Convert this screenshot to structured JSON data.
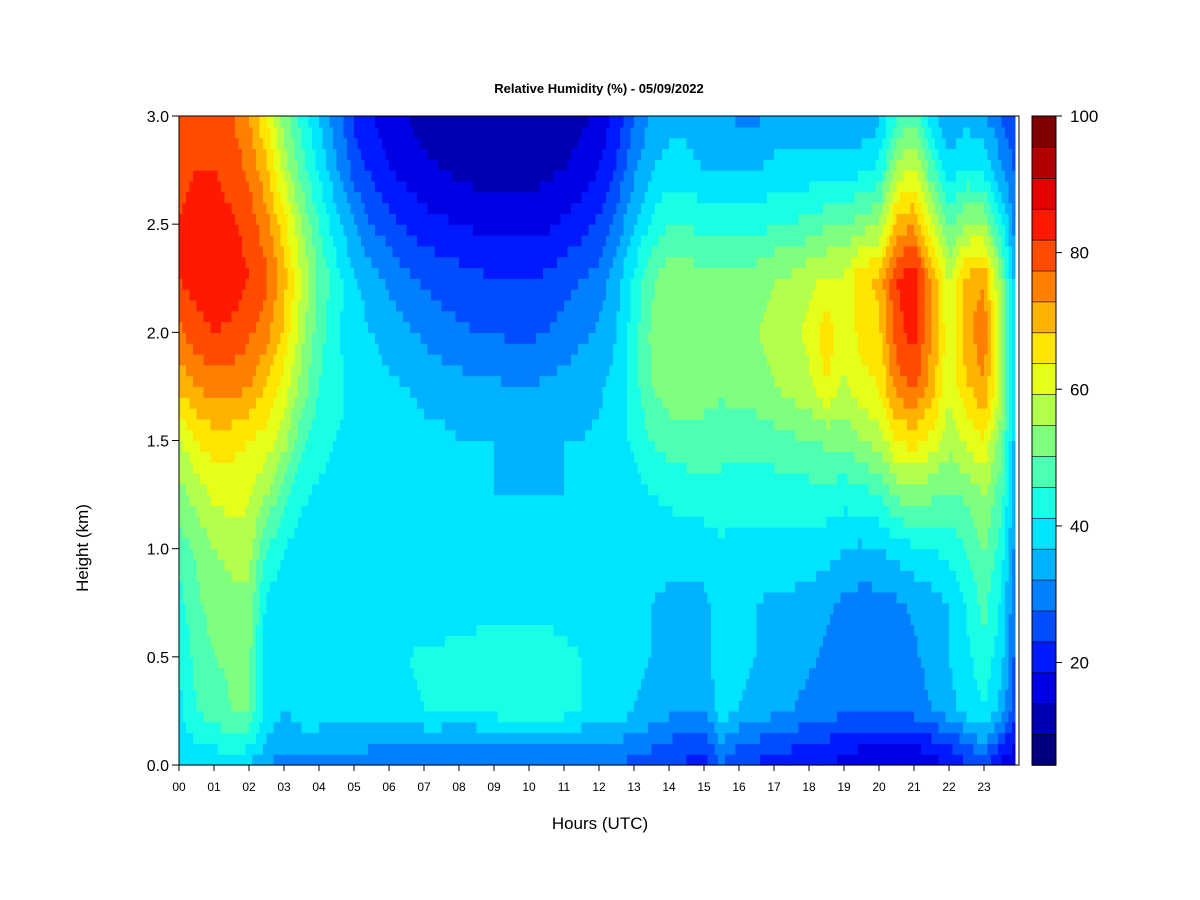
{
  "chart_data": {
    "type": "heatmap",
    "title": "Relative Humidity (%) - 05/09/2022",
    "xlabel": "Hours (UTC)",
    "ylabel": "Height (km)",
    "xlim": [
      0,
      24
    ],
    "ylim": [
      0.0,
      3.0
    ],
    "x_tick_labels": [
      "00",
      "01",
      "02",
      "03",
      "04",
      "05",
      "06",
      "07",
      "08",
      "09",
      "10",
      "11",
      "12",
      "13",
      "14",
      "15",
      "16",
      "17",
      "18",
      "19",
      "20",
      "21",
      "22",
      "23"
    ],
    "y_tick_labels": [
      "0.0",
      "0.5",
      "1.0",
      "1.5",
      "2.0",
      "2.5",
      "3.0"
    ],
    "y_ticks": [
      0.0,
      0.5,
      1.0,
      1.5,
      2.0,
      2.5,
      3.0
    ],
    "colorbar": {
      "min": 5,
      "max": 100,
      "step": 5,
      "tick_labels": [
        "20",
        "40",
        "60",
        "80",
        "100"
      ],
      "ticks": [
        20,
        40,
        60,
        80,
        100
      ],
      "colors": [
        "#00007f",
        "#0000b2",
        "#0000e5",
        "#0019ff",
        "#004cff",
        "#007fff",
        "#00b2ff",
        "#00e5ff",
        "#19ffe5",
        "#4cffb2",
        "#7fff7f",
        "#b2ff4c",
        "#e5ff19",
        "#ffe500",
        "#ffb200",
        "#ff7f00",
        "#ff4c00",
        "#ff1900",
        "#e50000",
        "#b20000",
        "#7f0000"
      ]
    },
    "heights_km": [
      0.0,
      0.1,
      0.25,
      0.5,
      0.75,
      1.0,
      1.25,
      1.5,
      1.75,
      2.0,
      2.25,
      2.5,
      2.75,
      3.0
    ],
    "hours": [
      0,
      0.5,
      1,
      1.5,
      2,
      2.5,
      3,
      3.5,
      4,
      4.5,
      5,
      5.5,
      6,
      6.5,
      7,
      7.5,
      8,
      8.5,
      9,
      9.5,
      10,
      10.5,
      11,
      11.5,
      12,
      12.5,
      13,
      13.5,
      14,
      14.5,
      15,
      15.5,
      16,
      16.5,
      17,
      17.5,
      18,
      18.5,
      19,
      19.5,
      20,
      20.5,
      21,
      21.5,
      22,
      22.5,
      23,
      23.5,
      23.85
    ],
    "rh_percent": [
      [
        40,
        42,
        42,
        44,
        40,
        35,
        32,
        33,
        33,
        32,
        32,
        31,
        31,
        30,
        30,
        30,
        30,
        30,
        30,
        30,
        30,
        30,
        30,
        30,
        30,
        30,
        28,
        27,
        25,
        24,
        22,
        30,
        26,
        24,
        22,
        22,
        20,
        20,
        18,
        16,
        16,
        14,
        15,
        18,
        20,
        24,
        25,
        18,
        15
      ],
      [
        42,
        45,
        45,
        48,
        46,
        40,
        36,
        38,
        38,
        37,
        37,
        36,
        36,
        35,
        35,
        35,
        34,
        34,
        34,
        34,
        34,
        35,
        35,
        35,
        34,
        34,
        33,
        31,
        29,
        28,
        26,
        35,
        30,
        29,
        27,
        26,
        25,
        24,
        22,
        21,
        20,
        20,
        20,
        23,
        25,
        30,
        35,
        25,
        20
      ],
      [
        44,
        50,
        52,
        55,
        55,
        42,
        40,
        42,
        42,
        42,
        43,
        43,
        44,
        44,
        45,
        45,
        45,
        46,
        47,
        48,
        49,
        49,
        47,
        45,
        44,
        43,
        40,
        38,
        36,
        36,
        35,
        42,
        40,
        38,
        36,
        35,
        33,
        32,
        31,
        30,
        30,
        30,
        32,
        35,
        38,
        42,
        45,
        38,
        28
      ],
      [
        45,
        52,
        55,
        56,
        56,
        42,
        42,
        44,
        44,
        44,
        44,
        44,
        44,
        45,
        46,
        46,
        47,
        48,
        49,
        50,
        50,
        49,
        47,
        45,
        43,
        42,
        41,
        40,
        39,
        38,
        38,
        44,
        41,
        40,
        39,
        38,
        36,
        34,
        33,
        32,
        31,
        32,
        34,
        37,
        40,
        44,
        48,
        42,
        30
      ],
      [
        48,
        54,
        57,
        58,
        58,
        44,
        42,
        42,
        42,
        42,
        42,
        42,
        42,
        42,
        42,
        42,
        42,
        42,
        42,
        42,
        42,
        42,
        41,
        40,
        40,
        40,
        40,
        40,
        39,
        39,
        39,
        42,
        40,
        40,
        39,
        39,
        38,
        36,
        34,
        33,
        33,
        34,
        36,
        38,
        40,
        45,
        52,
        44,
        32
      ],
      [
        52,
        56,
        60,
        62,
        62,
        50,
        45,
        43,
        42,
        42,
        42,
        41,
        41,
        41,
        40,
        40,
        40,
        40,
        40,
        40,
        40,
        40,
        40,
        40,
        40,
        40,
        41,
        42,
        42,
        42,
        42,
        44,
        43,
        43,
        43,
        43,
        43,
        42,
        40,
        39,
        40,
        42,
        44,
        45,
        47,
        50,
        56,
        48,
        35
      ],
      [
        58,
        62,
        66,
        67,
        66,
        60,
        52,
        46,
        44,
        43,
        42,
        42,
        41,
        41,
        40,
        40,
        40,
        40,
        40,
        40,
        40,
        40,
        40,
        40,
        40,
        41,
        43,
        45,
        46,
        47,
        48,
        48,
        47,
        47,
        47,
        47,
        48,
        48,
        47,
        48,
        50,
        56,
        58,
        56,
        54,
        56,
        60,
        52,
        38
      ],
      [
        64,
        70,
        73,
        72,
        70,
        68,
        62,
        52,
        47,
        45,
        44,
        43,
        42,
        42,
        41,
        41,
        40,
        40,
        40,
        39,
        39,
        39,
        40,
        40,
        41,
        43,
        46,
        50,
        52,
        53,
        53,
        52,
        52,
        52,
        53,
        54,
        55,
        56,
        56,
        60,
        62,
        70,
        72,
        68,
        62,
        66,
        70,
        56,
        40
      ],
      [
        76,
        80,
        82,
        82,
        80,
        75,
        68,
        58,
        50,
        46,
        44,
        42,
        41,
        40,
        39,
        38,
        37,
        36,
        36,
        35,
        35,
        36,
        37,
        38,
        39,
        42,
        48,
        55,
        58,
        58,
        57,
        56,
        57,
        58,
        60,
        62,
        64,
        70,
        64,
        68,
        70,
        82,
        86,
        78,
        66,
        74,
        80,
        62,
        44
      ],
      [
        84,
        88,
        90,
        89,
        86,
        82,
        74,
        62,
        52,
        46,
        42,
        40,
        38,
        36,
        34,
        32,
        31,
        30,
        30,
        29,
        29,
        30,
        32,
        34,
        36,
        40,
        48,
        56,
        60,
        60,
        58,
        58,
        58,
        60,
        62,
        64,
        66,
        74,
        66,
        72,
        74,
        88,
        92,
        80,
        66,
        78,
        84,
        60,
        42
      ],
      [
        90,
        92,
        93,
        93,
        90,
        86,
        77,
        65,
        54,
        47,
        41,
        37,
        34,
        31,
        29,
        28,
        27,
        26,
        25,
        25,
        25,
        26,
        28,
        30,
        32,
        38,
        46,
        54,
        58,
        58,
        56,
        56,
        56,
        58,
        60,
        61,
        64,
        66,
        66,
        74,
        76,
        90,
        94,
        80,
        64,
        76,
        80,
        58,
        40
      ],
      [
        90,
        92,
        92,
        91,
        88,
        82,
        72,
        60,
        50,
        42,
        35,
        30,
        27,
        24,
        22,
        21,
        20,
        19,
        18,
        18,
        18,
        19,
        21,
        23,
        26,
        32,
        40,
        46,
        50,
        50,
        48,
        48,
        48,
        48,
        50,
        50,
        52,
        54,
        54,
        58,
        60,
        76,
        80,
        66,
        54,
        60,
        60,
        46,
        34
      ],
      [
        88,
        90,
        90,
        88,
        84,
        76,
        64,
        52,
        44,
        36,
        28,
        24,
        20,
        18,
        16,
        15,
        14,
        13,
        13,
        13,
        13,
        14,
        15,
        17,
        20,
        26,
        34,
        40,
        42,
        42,
        40,
        40,
        40,
        40,
        42,
        42,
        42,
        42,
        42,
        44,
        46,
        62,
        66,
        52,
        42,
        46,
        44,
        36,
        30
      ],
      [
        86,
        88,
        88,
        86,
        80,
        70,
        58,
        48,
        40,
        32,
        24,
        20,
        17,
        15,
        13,
        12,
        11,
        10,
        10,
        10,
        10,
        11,
        12,
        14,
        16,
        22,
        30,
        36,
        38,
        38,
        36,
        36,
        34,
        34,
        36,
        36,
        36,
        36,
        36,
        36,
        38,
        50,
        54,
        42,
        34,
        38,
        36,
        30,
        26
      ]
    ]
  }
}
